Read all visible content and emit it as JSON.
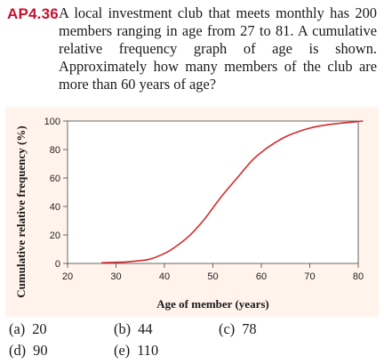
{
  "problem": {
    "number": "AP4.36",
    "text": "A local investment club that meets monthly has 200 members ranging in age from 27 to 81. A cumulative relative frequency graph of age is shown. Approximately how many members of the club are more than 60 years of age?"
  },
  "chart_data": {
    "type": "line",
    "title": "",
    "xlabel": "Age of member (years)",
    "ylabel": "Cumulative relative frequency (%)",
    "xlim": [
      20,
      80
    ],
    "ylim": [
      0,
      100
    ],
    "x_ticks": [
      20,
      30,
      40,
      50,
      60,
      70,
      80
    ],
    "y_ticks": [
      0,
      20,
      40,
      60,
      80,
      100
    ],
    "grid": false,
    "series": [
      {
        "x": [
          27,
          30,
          32,
          35,
          37,
          40,
          42,
          45,
          48,
          50,
          52,
          55,
          58,
          60,
          62,
          65,
          68,
          70,
          72,
          75,
          78,
          81
        ],
        "y": [
          0.5,
          0.8,
          1,
          2,
          3,
          7,
          11,
          19,
          30,
          39,
          48,
          60,
          72,
          78,
          83,
          89,
          93,
          95,
          96.5,
          98,
          99,
          100
        ],
        "color": "#d62a2a"
      }
    ],
    "frame_color": "#c8102e"
  },
  "answers": [
    {
      "letter": "(a)",
      "value": "20"
    },
    {
      "letter": "(b)",
      "value": "44"
    },
    {
      "letter": "(c)",
      "value": "78"
    },
    {
      "letter": "(d)",
      "value": "90"
    },
    {
      "letter": "(e)",
      "value": "110"
    }
  ]
}
